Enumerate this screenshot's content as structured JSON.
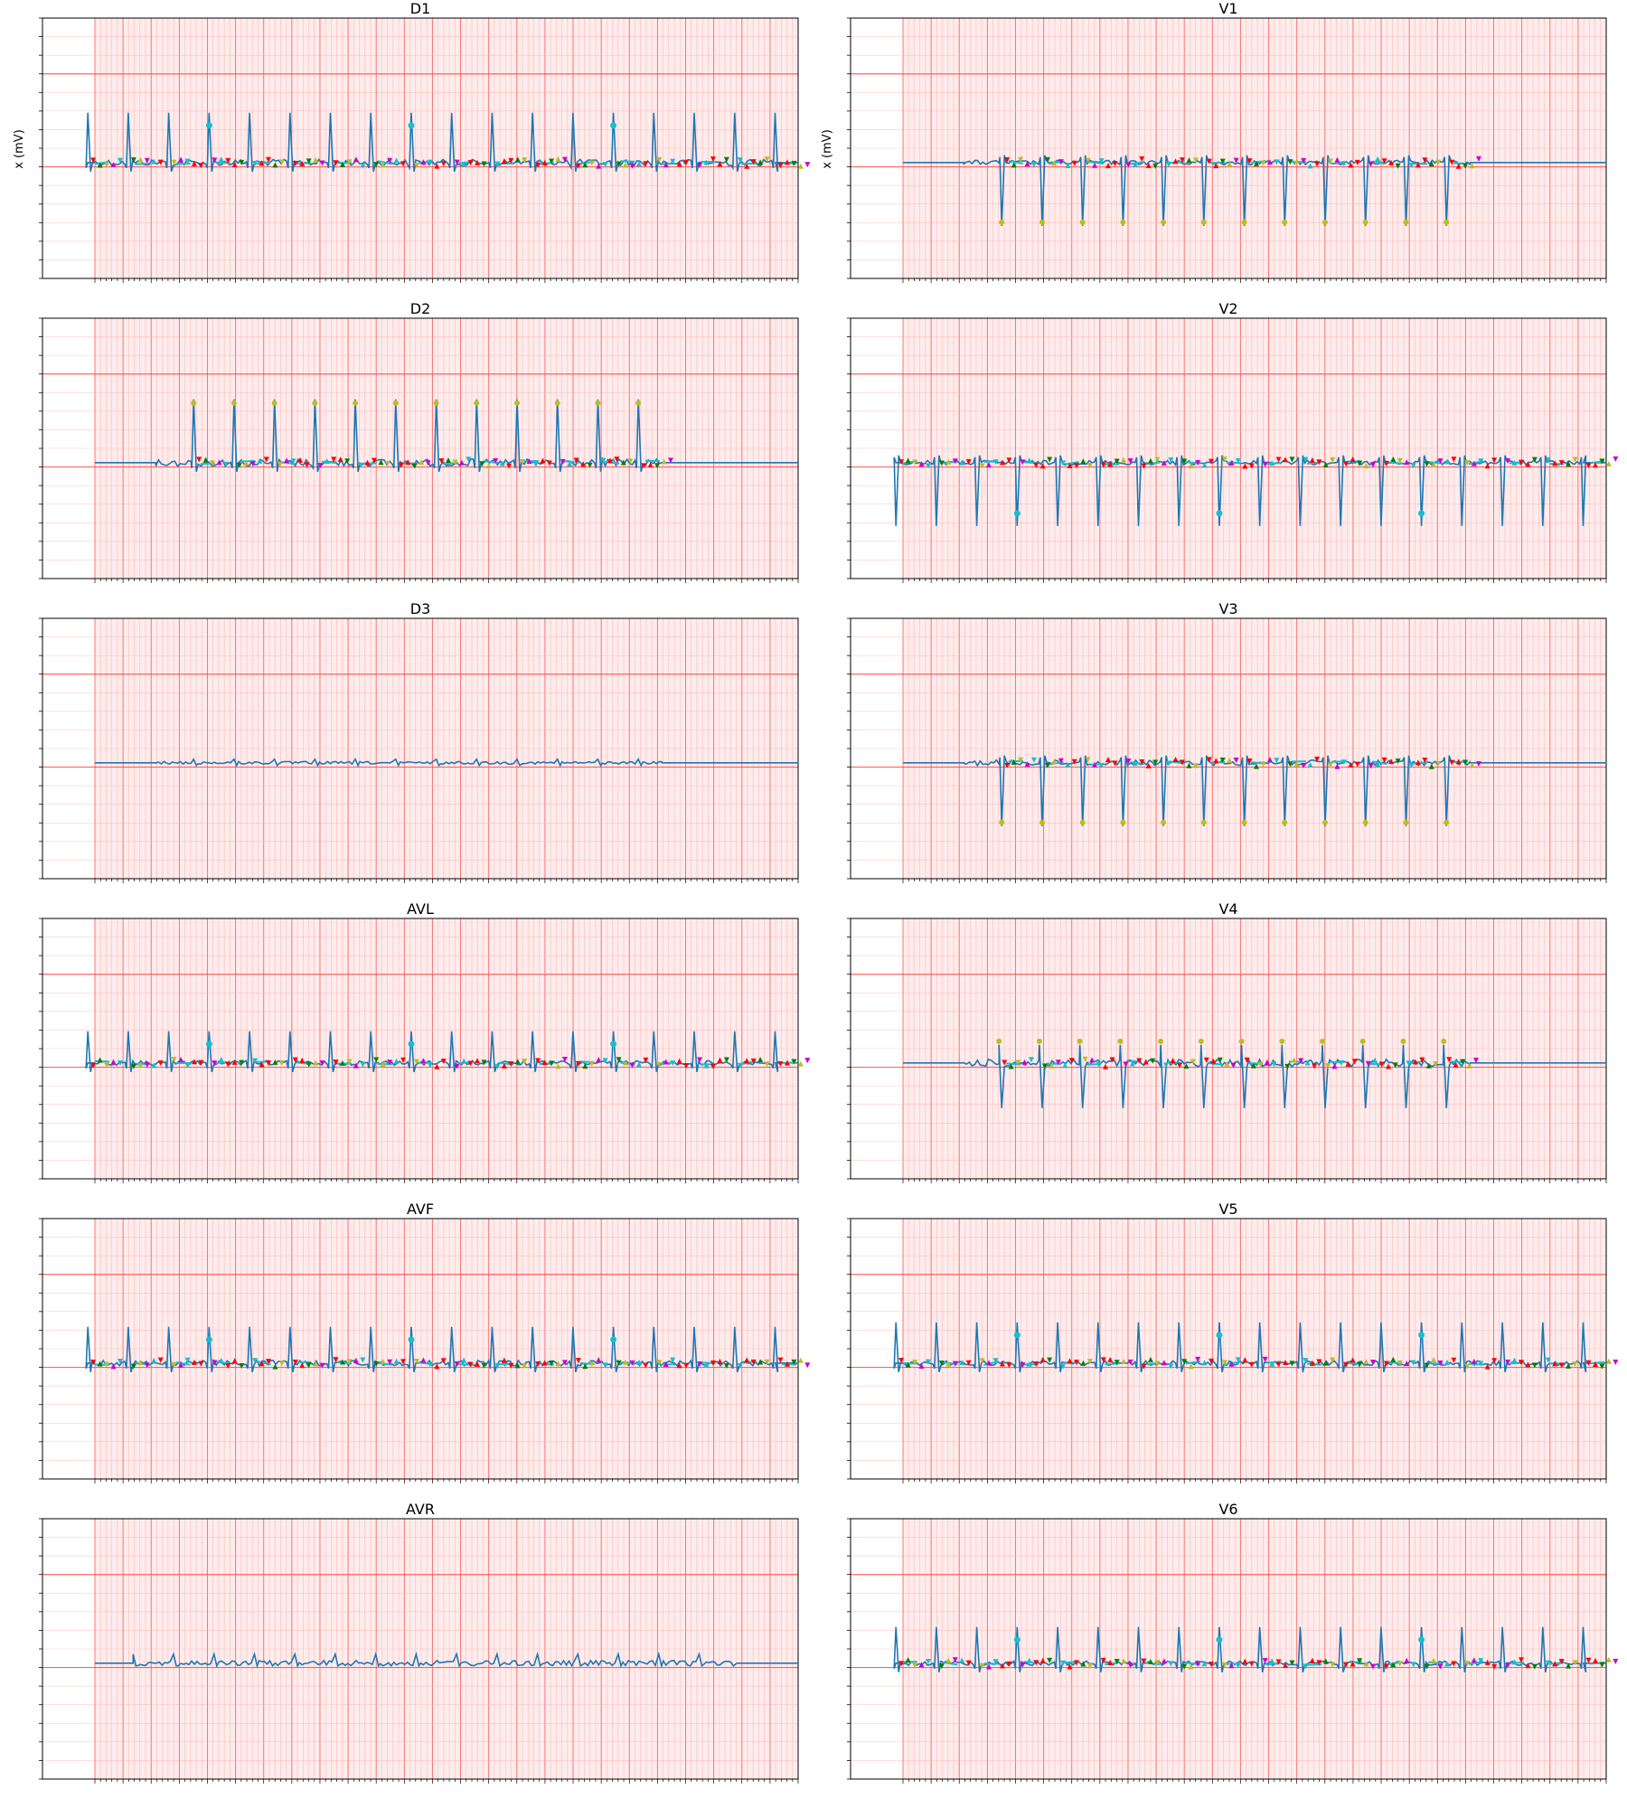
{
  "figure": {
    "layout": "6 rows x 2 columns",
    "ylabel": "x (mV)",
    "paper": {
      "background": "#fdecec",
      "minor_grid": "#ff9a9a",
      "major_grid": "#ff4a4a",
      "left_margin_strip": "#ffffff"
    },
    "colors": {
      "signal": "#1f77b4",
      "cyan_marker": "#17becf",
      "red_marker": "#ff0000",
      "green_marker": "#008000",
      "yellow_marker": "#bcbd22",
      "magenta_marker": "#cc00cc"
    }
  },
  "chart_data": [
    {
      "title": "D1",
      "type": "line",
      "ylabel": "x (mV)",
      "start": 0.06,
      "end": 0.97,
      "rr": 0.0535,
      "amp": 55,
      "qrs_dir": "up",
      "offset": 0.06,
      "peak_markers": "cyan-sparse",
      "noise": 7
    },
    {
      "title": "V1",
      "type": "line",
      "ylabel": "x (mV)",
      "start": 0.15,
      "end": 0.82,
      "rr": 0.0535,
      "amp": -70,
      "qrs_dir": "down",
      "offset": 0.2,
      "peak_markers": "yellow",
      "noise": 5
    },
    {
      "title": "D2",
      "type": "line",
      "ylabel": "",
      "start": 0.15,
      "end": 0.82,
      "rr": 0.0535,
      "amp": 70,
      "qrs_dir": "up",
      "offset": 0.2,
      "peak_markers": "yellow",
      "noise": 8
    },
    {
      "title": "V2",
      "type": "line",
      "ylabel": "",
      "start": 0.06,
      "end": 0.97,
      "rr": 0.0535,
      "amp": -70,
      "qrs_dir": "down",
      "offset": 0.06,
      "peak_markers": "cyan-sparse",
      "noise": 5
    },
    {
      "title": "D3",
      "type": "line",
      "ylabel": "",
      "start": 0.15,
      "end": 0.82,
      "rr": 0.0535,
      "amp": 4,
      "qrs_dir": "flat",
      "offset": 0.2,
      "peak_markers": "none",
      "noise": 3
    },
    {
      "title": "V3",
      "type": "line",
      "ylabel": "",
      "start": 0.15,
      "end": 0.82,
      "rr": 0.0535,
      "amp": -70,
      "qrs_dir": "down",
      "offset": 0.2,
      "peak_markers": "yellow",
      "noise": 6
    },
    {
      "title": "AVL",
      "type": "line",
      "ylabel": "",
      "start": 0.06,
      "end": 0.97,
      "rr": 0.0535,
      "amp": 35,
      "qrs_dir": "up",
      "offset": 0.06,
      "peak_markers": "cyan-sparse",
      "noise": 5
    },
    {
      "title": "V4",
      "type": "line",
      "ylabel": "",
      "start": 0.15,
      "end": 0.82,
      "rr": 0.0535,
      "amp": -50,
      "qrs_dir": "biphasic",
      "offset": 0.2,
      "peak_markers": "yellow",
      "noise": 8
    },
    {
      "title": "AVF",
      "type": "line",
      "ylabel": "",
      "start": 0.06,
      "end": 0.97,
      "rr": 0.0535,
      "amp": 40,
      "qrs_dir": "up",
      "offset": 0.06,
      "peak_markers": "cyan-sparse",
      "noise": 6
    },
    {
      "title": "V5",
      "type": "line",
      "ylabel": "",
      "start": 0.06,
      "end": 0.97,
      "rr": 0.0535,
      "amp": 45,
      "qrs_dir": "up",
      "offset": 0.06,
      "peak_markers": "cyan-sparse",
      "noise": 5
    },
    {
      "title": "AVR",
      "type": "line",
      "ylabel": "",
      "start": 0.12,
      "end": 0.92,
      "rr": 0.0535,
      "amp": 10,
      "qrs_dir": "flat",
      "offset": 0.12,
      "peak_markers": "none",
      "noise": 6
    },
    {
      "title": "V6",
      "type": "line",
      "ylabel": "",
      "start": 0.06,
      "end": 0.97,
      "rr": 0.0535,
      "amp": 40,
      "qrs_dir": "up",
      "offset": 0.06,
      "peak_markers": "cyan-sparse",
      "noise": 5
    }
  ]
}
